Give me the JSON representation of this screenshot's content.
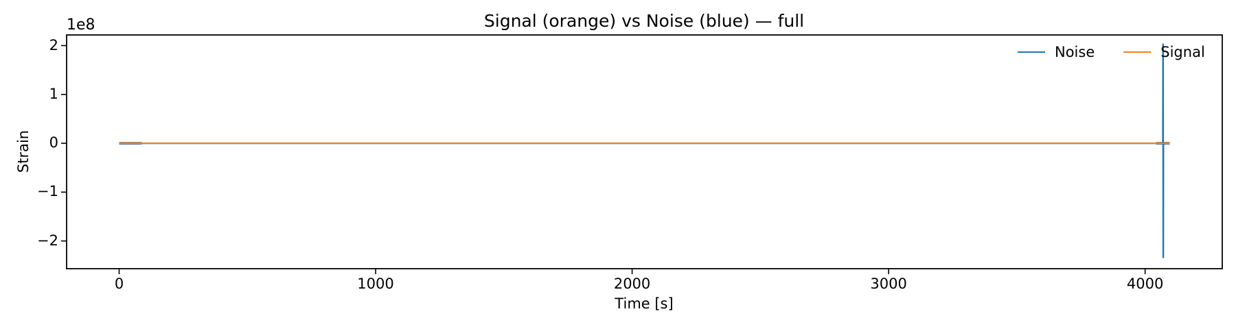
{
  "chart_data": {
    "type": "line",
    "title": "Signal (orange) vs Noise (blue) — full",
    "xlabel": "Time [s]",
    "ylabel": "Strain",
    "y_offset_text": "1e8",
    "xlim": [
      -204.8,
      4300.8
    ],
    "ylim": [
      -256750000,
      221750000
    ],
    "x_ticks": [
      0,
      1000,
      2000,
      3000,
      4000
    ],
    "y_ticks": [
      -200000000,
      -100000000,
      0,
      100000000,
      200000000
    ],
    "y_tick_display": [
      "−2",
      "−1",
      "0",
      "1",
      "2"
    ],
    "grid": false,
    "axis_color": "#000000",
    "legend": {
      "location": "upper right",
      "frame": false,
      "entries": [
        {
          "label": "Noise",
          "color": "#1f77b4"
        },
        {
          "label": "Signal",
          "color": "#ff7f0e"
        }
      ]
    },
    "series": [
      {
        "name": "Noise",
        "color": "#1f77b4",
        "width": 2.4,
        "points": [
          [
            0,
            0
          ],
          [
            4069.4,
            0
          ],
          [
            4070.0,
            204000000
          ],
          [
            4070.7,
            -235000000
          ],
          [
            4071.3,
            0
          ],
          [
            4096,
            0
          ]
        ]
      },
      {
        "name": "Signal",
        "color": "#ff7f0e",
        "width": 2,
        "points": [
          [
            0,
            0
          ],
          [
            4096,
            0
          ]
        ]
      }
    ],
    "noise_overlap_halo": {
      "color": "#57626d",
      "width": 3.6,
      "value": 0,
      "ranges": [
        [
          0,
          88
        ],
        [
          4043,
          4096
        ]
      ]
    }
  }
}
